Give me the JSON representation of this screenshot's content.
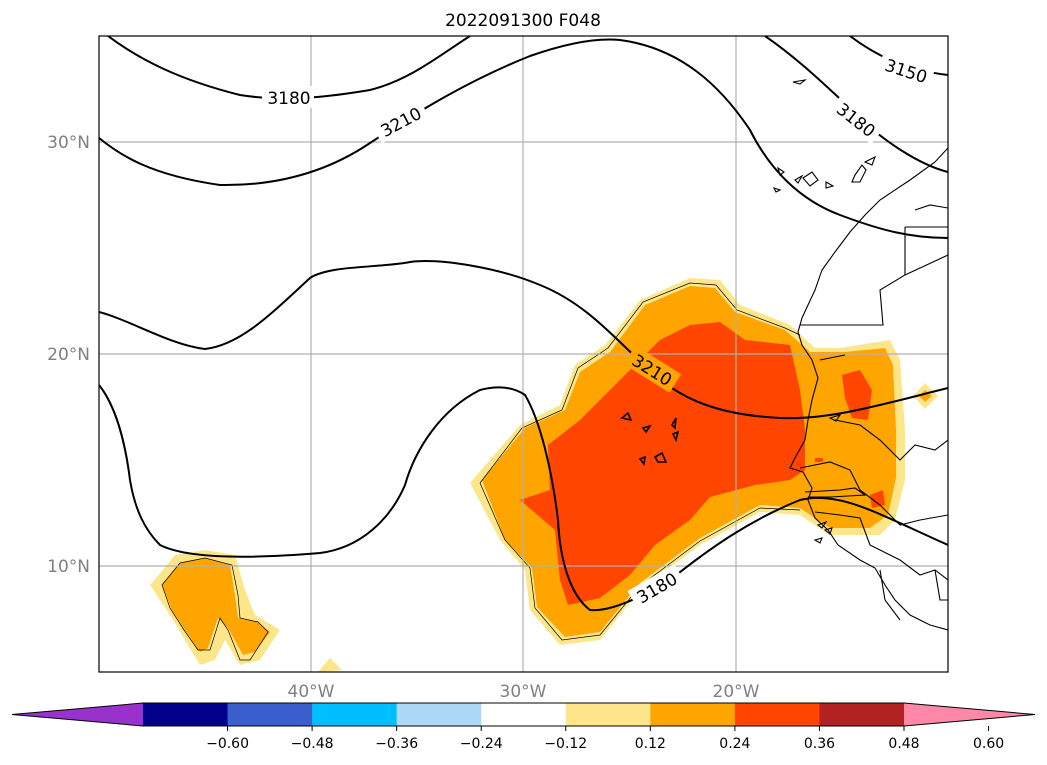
{
  "title": "2022091300 F048",
  "map": {
    "region": "Eastern tropical Atlantic / West Africa",
    "lat_labels": [
      "30°N",
      "20°N",
      "10°N"
    ],
    "lon_labels": [
      "40°W",
      "30°W",
      "20°W"
    ],
    "contour_labels": [
      "3180",
      "3210",
      "3150",
      "3180",
      "3210",
      "3180"
    ],
    "contour_levels": [
      3150,
      3180,
      3210
    ],
    "shading_colors": {
      "pale_yellow": "#fde68a",
      "orange": "#ffa500",
      "red_orange": "#ff4500"
    }
  },
  "colorbar": {
    "ticks": [
      "−0.60",
      "−0.48",
      "−0.36",
      "−0.24",
      "−0.12",
      "0.12",
      "0.24",
      "0.36",
      "0.48",
      "0.60"
    ],
    "colors": [
      "#9932cc",
      "#00008b",
      "#3a5fcd",
      "#00bfff",
      "#add8f6",
      "#ffffff",
      "#fde68a",
      "#ffa500",
      "#ff4500",
      "#b22222",
      "#ff87a8"
    ],
    "extend": "both"
  }
}
